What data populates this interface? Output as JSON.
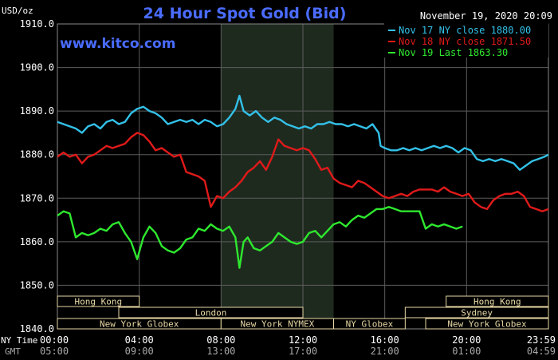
{
  "header": {
    "unit": "USD/oz",
    "title": "24 Hour Spot Gold (Bid)",
    "timestamp": "November 19, 2020 20:09",
    "watermark": "www.kitco.com"
  },
  "axis_row_labels": {
    "ny_time": "NY Time",
    "gmt": "GMT"
  },
  "colors": {
    "background": "#000000",
    "title": "#4a6cff",
    "watermark": "#4a6cff",
    "grid": "#5c5c5c",
    "axis_text": "#ffffff",
    "nov17": "#33c1e8",
    "nov18": "#e01a1a",
    "nov19": "#2ee82e",
    "shade": "#1f2a1f",
    "session_box": "#e8d9a6",
    "session_text": "#e8d9a6"
  },
  "sessions": {
    "row1": [
      {
        "label": "Hong Kong",
        "start": 0,
        "end": 4.0
      },
      {
        "label": "Hong Kong",
        "start": 19.0,
        "end": 24.0
      }
    ],
    "row2": [
      {
        "label": "London",
        "start": 3.0,
        "end": 12.0
      },
      {
        "label": "Sydney",
        "start": 17.0,
        "end": 24.0
      }
    ],
    "row3": [
      {
        "label": "New York Globex",
        "start": 0,
        "end": 8.0
      },
      {
        "label": "New York NYMEX",
        "start": 8.0,
        "end": 13.5
      },
      {
        "label": "NY Globex",
        "start": 13.5,
        "end": 17.0
      },
      {
        "label": "New York Globex",
        "start": 18.0,
        "end": 24.0
      }
    ]
  },
  "chart_data": {
    "type": "line",
    "title": "24 Hour Spot Gold (Bid)",
    "ylabel": "USD/oz",
    "ylim": [
      1840,
      1910
    ],
    "yticks": [
      1840,
      1850,
      1860,
      1870,
      1880,
      1890,
      1900,
      1910
    ],
    "ytick_labels": [
      "1840.0",
      "1850.0",
      "1860.0",
      "1870.0",
      "1880.0",
      "1890.0",
      "1900.0",
      "1910.0"
    ],
    "xlim": [
      0,
      24
    ],
    "xticks": [
      0,
      4,
      8,
      12,
      16,
      20,
      24
    ],
    "xtick_labels_ny": [
      "00:00",
      "04:00",
      "08:00",
      "12:00",
      "16:00",
      "20:00",
      "23:59"
    ],
    "xtick_labels_gmt": [
      "05:00",
      "09:00",
      "13:00",
      "17:00",
      "21:00",
      "01:00",
      "04:59"
    ],
    "shaded_region": [
      8.0,
      13.5
    ],
    "grid": true,
    "legend_position": "top-right",
    "series": [
      {
        "name": "Nov 17 NY close 1880.00",
        "color": "#33c1e8",
        "x": [
          0,
          0.3,
          0.6,
          0.9,
          1.2,
          1.5,
          1.8,
          2.1,
          2.4,
          2.7,
          3.0,
          3.3,
          3.6,
          3.9,
          4.2,
          4.5,
          4.8,
          5.1,
          5.4,
          5.7,
          6.0,
          6.3,
          6.6,
          6.9,
          7.2,
          7.5,
          7.8,
          8.1,
          8.4,
          8.7,
          8.9,
          9.1,
          9.4,
          9.7,
          10.0,
          10.3,
          10.6,
          10.9,
          11.2,
          11.5,
          11.8,
          12.1,
          12.4,
          12.7,
          13.0,
          13.3,
          13.6,
          13.9,
          14.2,
          14.5,
          14.8,
          15.1,
          15.4,
          15.7,
          15.8,
          16.0,
          16.3,
          16.6,
          16.9,
          17.2,
          17.5,
          17.8,
          18.1,
          18.4,
          18.7,
          19.0,
          19.3,
          19.6,
          19.9,
          20.2,
          20.5,
          20.8,
          21.1,
          21.4,
          21.7,
          22.0,
          22.3,
          22.6,
          22.9,
          23.2,
          23.5,
          23.8,
          24.0
        ],
        "y": [
          1887.5,
          1887.0,
          1886.5,
          1886.0,
          1885.0,
          1886.5,
          1887.0,
          1886.0,
          1887.5,
          1888.0,
          1887.0,
          1887.5,
          1889.5,
          1890.5,
          1891.0,
          1890.0,
          1889.5,
          1888.5,
          1887.0,
          1887.5,
          1888.0,
          1887.5,
          1888.0,
          1887.0,
          1888.0,
          1887.5,
          1886.5,
          1887.0,
          1888.5,
          1890.5,
          1893.5,
          1890.0,
          1889.0,
          1890.0,
          1888.5,
          1887.5,
          1888.5,
          1888.0,
          1887.0,
          1886.5,
          1886.0,
          1886.5,
          1886.0,
          1887.0,
          1887.0,
          1887.5,
          1887.0,
          1887.0,
          1886.5,
          1887.0,
          1886.5,
          1886.0,
          1887.0,
          1885.0,
          1882.0,
          1881.5,
          1881.0,
          1881.0,
          1881.5,
          1881.0,
          1881.5,
          1881.0,
          1881.5,
          1882.0,
          1881.5,
          1882.0,
          1881.5,
          1880.5,
          1881.5,
          1881.0,
          1879.0,
          1878.5,
          1879.0,
          1878.5,
          1879.0,
          1878.5,
          1878.0,
          1876.5,
          1877.5,
          1878.5,
          1879.0,
          1879.5,
          1880.0
        ]
      },
      {
        "name": "Nov 18 NY close 1871.50",
        "color": "#e01a1a",
        "x": [
          0,
          0.3,
          0.6,
          0.9,
          1.2,
          1.5,
          1.8,
          2.1,
          2.4,
          2.7,
          3.0,
          3.3,
          3.6,
          3.9,
          4.2,
          4.5,
          4.8,
          5.1,
          5.4,
          5.7,
          6.0,
          6.3,
          6.6,
          6.9,
          7.2,
          7.5,
          7.8,
          8.1,
          8.4,
          8.7,
          9.0,
          9.3,
          9.6,
          9.9,
          10.2,
          10.5,
          10.8,
          11.1,
          11.4,
          11.7,
          12.0,
          12.3,
          12.6,
          12.9,
          13.2,
          13.5,
          13.8,
          14.1,
          14.4,
          14.7,
          15.0,
          15.3,
          15.6,
          15.9,
          16.2,
          16.5,
          16.8,
          17.1,
          17.4,
          17.7,
          18.0,
          18.3,
          18.6,
          18.9,
          19.2,
          19.5,
          19.8,
          20.1,
          20.4,
          20.7,
          21.0,
          21.3,
          21.6,
          21.9,
          22.2,
          22.5,
          22.8,
          23.1,
          23.4,
          23.7,
          24.0
        ],
        "y": [
          1879.5,
          1880.5,
          1879.5,
          1880.0,
          1878.0,
          1879.5,
          1880.0,
          1881.0,
          1882.0,
          1881.5,
          1882.0,
          1882.5,
          1884.0,
          1885.0,
          1884.5,
          1883.0,
          1881.0,
          1881.5,
          1880.5,
          1879.5,
          1880.0,
          1876.0,
          1875.5,
          1875.0,
          1874.0,
          1868.0,
          1870.5,
          1870.0,
          1871.5,
          1872.5,
          1874.0,
          1876.0,
          1877.0,
          1878.5,
          1876.5,
          1879.5,
          1883.5,
          1882.0,
          1881.5,
          1881.0,
          1881.5,
          1881.0,
          1879.0,
          1876.5,
          1877.0,
          1874.5,
          1873.5,
          1873.0,
          1872.5,
          1874.0,
          1873.5,
          1872.5,
          1871.5,
          1870.5,
          1870.0,
          1870.5,
          1871.0,
          1870.5,
          1871.5,
          1872.0,
          1872.0,
          1872.0,
          1871.5,
          1872.5,
          1871.5,
          1871.0,
          1870.5,
          1871.0,
          1869.0,
          1868.0,
          1867.5,
          1869.5,
          1870.5,
          1871.0,
          1871.0,
          1871.5,
          1870.5,
          1868.0,
          1867.5,
          1867.0,
          1867.5
        ]
      },
      {
        "name": "Nov 19 Last 1863.30",
        "color": "#2ee82e",
        "x": [
          0,
          0.3,
          0.6,
          0.9,
          1.2,
          1.5,
          1.8,
          2.1,
          2.4,
          2.7,
          3.0,
          3.3,
          3.6,
          3.9,
          4.2,
          4.5,
          4.8,
          5.1,
          5.4,
          5.7,
          6.0,
          6.3,
          6.6,
          6.9,
          7.2,
          7.5,
          7.8,
          8.1,
          8.4,
          8.7,
          8.9,
          9.1,
          9.3,
          9.6,
          9.9,
          10.2,
          10.5,
          10.8,
          11.1,
          11.4,
          11.7,
          12.0,
          12.3,
          12.6,
          12.9,
          13.2,
          13.5,
          13.8,
          14.1,
          14.4,
          14.7,
          15.0,
          15.3,
          15.6,
          15.9,
          16.2,
          16.5,
          16.8,
          17.1,
          17.4,
          17.7,
          18.0,
          18.3,
          18.6,
          18.9,
          19.2,
          19.5,
          19.8
        ],
        "y": [
          1866.0,
          1867.0,
          1866.5,
          1861.0,
          1862.0,
          1861.5,
          1862.0,
          1863.0,
          1862.5,
          1864.0,
          1864.5,
          1862.0,
          1860.0,
          1856.0,
          1861.0,
          1863.5,
          1862.0,
          1859.0,
          1858.0,
          1857.5,
          1858.5,
          1860.5,
          1861.0,
          1863.0,
          1862.5,
          1864.0,
          1863.0,
          1862.5,
          1863.5,
          1861.0,
          1854.0,
          1860.0,
          1861.0,
          1858.5,
          1858.0,
          1859.0,
          1860.0,
          1862.0,
          1861.0,
          1860.0,
          1859.5,
          1860.0,
          1862.0,
          1862.5,
          1861.0,
          1862.5,
          1864.0,
          1864.5,
          1863.5,
          1865.0,
          1866.0,
          1865.5,
          1866.5,
          1867.5,
          1867.5,
          1868.0,
          1867.5,
          1867.0,
          1867.0,
          1867.0,
          1867.0,
          1863.0,
          1864.0,
          1863.5,
          1864.0,
          1863.5,
          1863.0,
          1863.5
        ]
      }
    ]
  }
}
